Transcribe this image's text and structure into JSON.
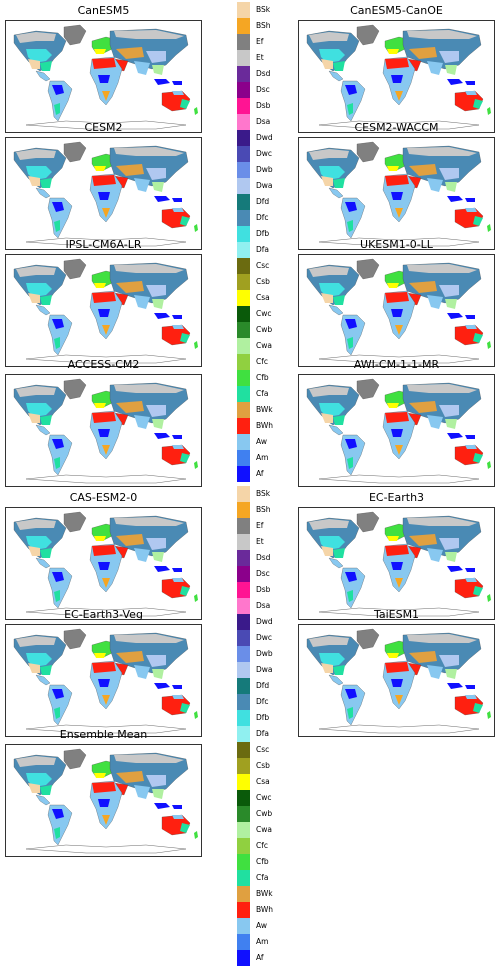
{
  "panels": [
    {
      "title": "CanESM5"
    },
    {
      "title": "CanESM5-CanOE"
    },
    {
      "title": "CESM2"
    },
    {
      "title": "CESM2-WACCM"
    },
    {
      "title": "IPSL-CM6A-LR"
    },
    {
      "title": "UKESM1-0-LL"
    },
    {
      "title": "ACCESS-CM2"
    },
    {
      "title": "AWI-CM-1-1-MR"
    },
    {
      "title": "CAS-ESM2-0"
    },
    {
      "title": "EC-Earth3"
    },
    {
      "title": "EC-Earth3-Veg"
    },
    {
      "title": "TaiESM1"
    },
    {
      "title": "Ensemble Mean"
    }
  ],
  "legend": [
    {
      "label": "BSk",
      "color": "#f5d5a8"
    },
    {
      "label": "BSh",
      "color": "#f5a623"
    },
    {
      "label": "Ef",
      "color": "#808080"
    },
    {
      "label": "Et",
      "color": "#c8c8c8"
    },
    {
      "label": "Dsd",
      "color": "#6a2a9a"
    },
    {
      "label": "Dsc",
      "color": "#8b008b"
    },
    {
      "label": "Dsb",
      "color": "#ff1493"
    },
    {
      "label": "Dsa",
      "color": "#ff77cc"
    },
    {
      "label": "Dwd",
      "color": "#3a1a8a"
    },
    {
      "label": "Dwc",
      "color": "#4a4ab4"
    },
    {
      "label": "Dwb",
      "color": "#6a8ee8"
    },
    {
      "label": "Dwa",
      "color": "#b0c8f0"
    },
    {
      "label": "Dfd",
      "color": "#157a7a"
    },
    {
      "label": "Dfc",
      "color": "#4a8ab4"
    },
    {
      "label": "Dfb",
      "color": "#40e0e0"
    },
    {
      "label": "Dfa",
      "color": "#90f0f0"
    },
    {
      "label": "Csc",
      "color": "#6b6b10"
    },
    {
      "label": "Csb",
      "color": "#a0a020"
    },
    {
      "label": "Csa",
      "color": "#ffff00"
    },
    {
      "label": "Cwc",
      "color": "#0a5a0a"
    },
    {
      "label": "Cwb",
      "color": "#2a8a2a"
    },
    {
      "label": "Cwa",
      "color": "#b0f0a0"
    },
    {
      "label": "Cfc",
      "color": "#90d040"
    },
    {
      "label": "Cfb",
      "color": "#40e040"
    },
    {
      "label": "Cfa",
      "color": "#20e0a0"
    },
    {
      "label": "BWk",
      "color": "#e0a040"
    },
    {
      "label": "BWh",
      "color": "#ff2010"
    },
    {
      "label": "Aw",
      "color": "#88c8f0"
    },
    {
      "label": "Am",
      "color": "#4080f0"
    },
    {
      "label": "Af",
      "color": "#1010ff"
    }
  ]
}
